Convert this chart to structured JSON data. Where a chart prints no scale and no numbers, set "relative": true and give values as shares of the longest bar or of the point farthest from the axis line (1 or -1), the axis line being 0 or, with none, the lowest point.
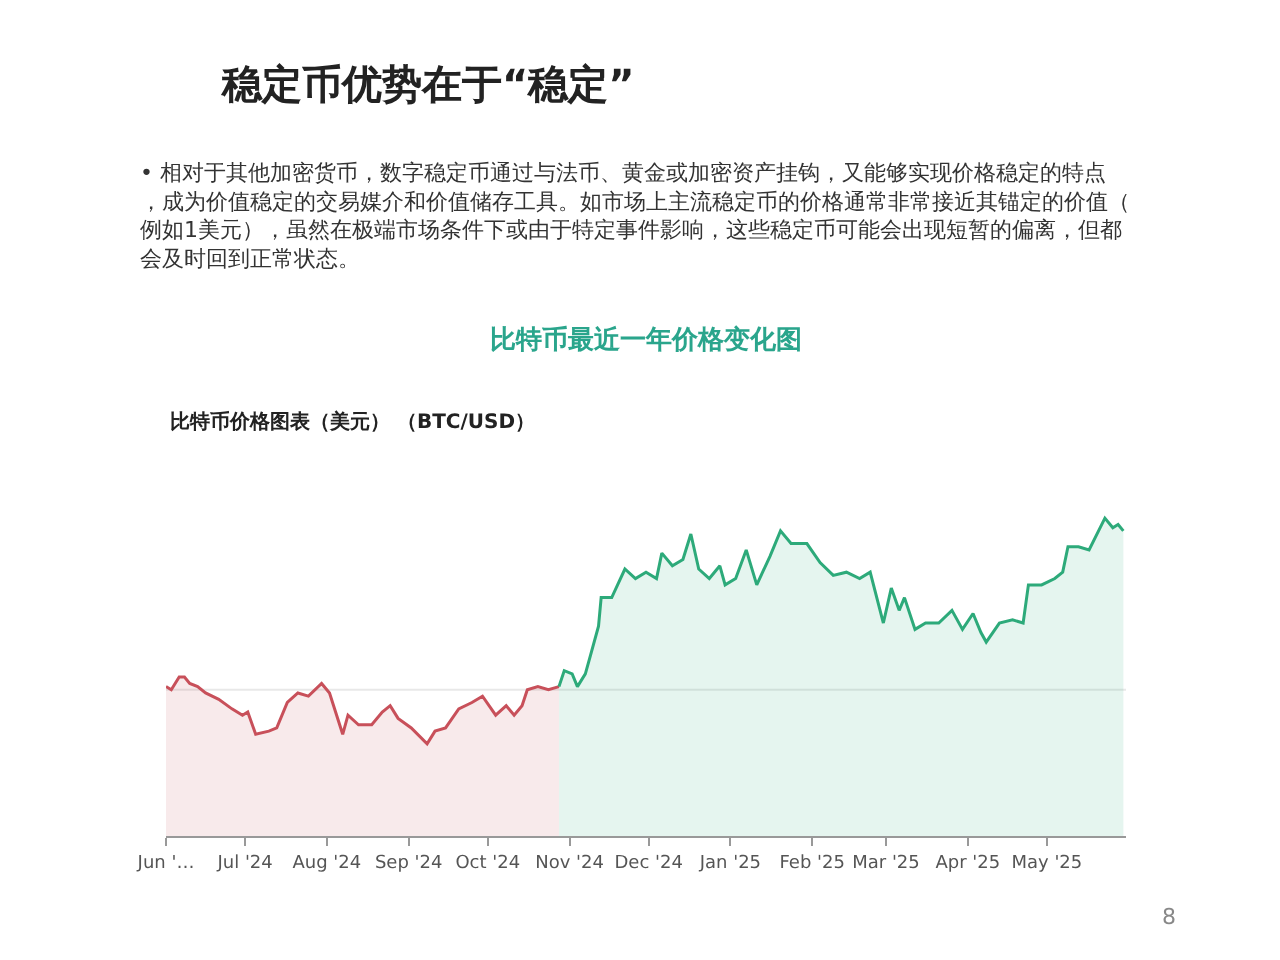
{
  "chart_data": {
    "type": "area",
    "relative": true,
    "title": "稳定币优势在于“稳定”",
    "subtitle": "比特币最近一年价格变化图",
    "ylabel": "比特币价格图表（美元） （BTC/USD）",
    "annotations": [
      "• 相对于其他加密货币，数字稳定币通过与法币、黄金或加密资产挂钩，又能够实现价格稳定的特点，成为价值稳定的交易媒介和价值储存工具。如市场上主流稳定币的价格通常非常接近其锚定的价值（例如1美元），虽然在极端市场条件下或由于特定事件影响，这些稳定币可能会出现短暂的偏离，但都会及时回到正常状态。",
      "8"
    ],
    "xlim": [
      "2024-06-01",
      "2025-05-31"
    ],
    "xticks": [
      {
        "value": "2024-06-01",
        "label": "Jun '…"
      },
      {
        "value": "2024-07-01",
        "label": "Jul '24"
      },
      {
        "value": "2024-08-01",
        "label": "Aug '24"
      },
      {
        "value": "2024-09-01",
        "label": "Sep '24"
      },
      {
        "value": "2024-10-01",
        "label": "Oct '24"
      },
      {
        "value": "2024-11-01",
        "label": "Nov '24"
      },
      {
        "value": "2024-12-01",
        "label": "Dec '24"
      },
      {
        "value": "2025-01-01",
        "label": "Jan '25"
      },
      {
        "value": "2025-02-01",
        "label": "Feb '25"
      },
      {
        "value": "2025-03-01",
        "label": "Mar '25"
      },
      {
        "value": "2025-04-01",
        "label": "Apr '25"
      },
      {
        "value": "2025-05-01",
        "label": "May '25"
      }
    ],
    "ref_lines": [
      {
        "axis": "y",
        "value": 0.46,
        "color": "#e8e8e8"
      }
    ],
    "marker": "none",
    "line_style": "solid",
    "series": [
      {
        "color": "#c8505a",
        "x": [
          "2024-06-01",
          "2024-06-03",
          "2024-06-06",
          "2024-06-08",
          "2024-06-10",
          "2024-06-13",
          "2024-06-16",
          "2024-06-21",
          "2024-06-26",
          "2024-06-30",
          "2024-07-02",
          "2024-07-05",
          "2024-07-10",
          "2024-07-13",
          "2024-07-17",
          "2024-07-21",
          "2024-07-25",
          "2024-07-30",
          "2024-08-02",
          "2024-08-07",
          "2024-08-09",
          "2024-08-13",
          "2024-08-18",
          "2024-08-22",
          "2024-08-25",
          "2024-08-28",
          "2024-09-02",
          "2024-09-08",
          "2024-09-11",
          "2024-09-15",
          "2024-09-20",
          "2024-09-25",
          "2024-09-29",
          "2024-10-04",
          "2024-10-08",
          "2024-10-11",
          "2024-10-14",
          "2024-10-16",
          "2024-10-20",
          "2024-10-24",
          "2024-10-28"
        ],
        "values": [
          0.47,
          0.46,
          0.5,
          0.5,
          0.48,
          0.47,
          0.45,
          0.43,
          0.4,
          0.38,
          0.39,
          0.32,
          0.33,
          0.34,
          0.42,
          0.45,
          0.44,
          0.48,
          0.45,
          0.32,
          0.38,
          0.35,
          0.35,
          0.39,
          0.41,
          0.37,
          0.34,
          0.29,
          0.33,
          0.34,
          0.4,
          0.42,
          0.44,
          0.38,
          0.41,
          0.38,
          0.41,
          0.46,
          0.47,
          0.46,
          0.47
        ]
      },
      {
        "color": "#2daa7a",
        "x": [
          "2024-10-28",
          "2024-10-30",
          "2024-11-02",
          "2024-11-04",
          "2024-11-07",
          "2024-11-09",
          "2024-11-12",
          "2024-11-13",
          "2024-11-17",
          "2024-11-22",
          "2024-11-26",
          "2024-11-30",
          "2024-12-04",
          "2024-12-06",
          "2024-12-10",
          "2024-12-14",
          "2024-12-17",
          "2024-12-20",
          "2024-12-24",
          "2024-12-28",
          "2024-12-30",
          "2025-01-03",
          "2025-01-07",
          "2025-01-11",
          "2025-01-16",
          "2025-01-20",
          "2025-01-24",
          "2025-01-30",
          "2025-02-04",
          "2025-02-09",
          "2025-02-14",
          "2025-02-19",
          "2025-02-23",
          "2025-02-28",
          "2025-03-03",
          "2025-03-06",
          "2025-03-08",
          "2025-03-12",
          "2025-03-16",
          "2025-03-21",
          "2025-03-26",
          "2025-03-30",
          "2025-04-03",
          "2025-04-06",
          "2025-04-08",
          "2025-04-13",
          "2025-04-18",
          "2025-04-22",
          "2025-04-24",
          "2025-04-29",
          "2025-05-04",
          "2025-05-07",
          "2025-05-09",
          "2025-05-13",
          "2025-05-17",
          "2025-05-23",
          "2025-05-26",
          "2025-05-28",
          "2025-05-30"
        ],
        "values": [
          0.47,
          0.52,
          0.51,
          0.47,
          0.51,
          0.57,
          0.66,
          0.75,
          0.75,
          0.84,
          0.81,
          0.83,
          0.81,
          0.89,
          0.85,
          0.87,
          0.95,
          0.84,
          0.81,
          0.85,
          0.79,
          0.81,
          0.9,
          0.79,
          0.88,
          0.96,
          0.92,
          0.92,
          0.86,
          0.82,
          0.83,
          0.81,
          0.83,
          0.67,
          0.78,
          0.71,
          0.75,
          0.65,
          0.67,
          0.67,
          0.71,
          0.65,
          0.7,
          0.64,
          0.61,
          0.67,
          0.68,
          0.67,
          0.79,
          0.79,
          0.81,
          0.83,
          0.91,
          0.91,
          0.9,
          1.0,
          0.97,
          0.98,
          0.96
        ]
      }
    ]
  }
}
